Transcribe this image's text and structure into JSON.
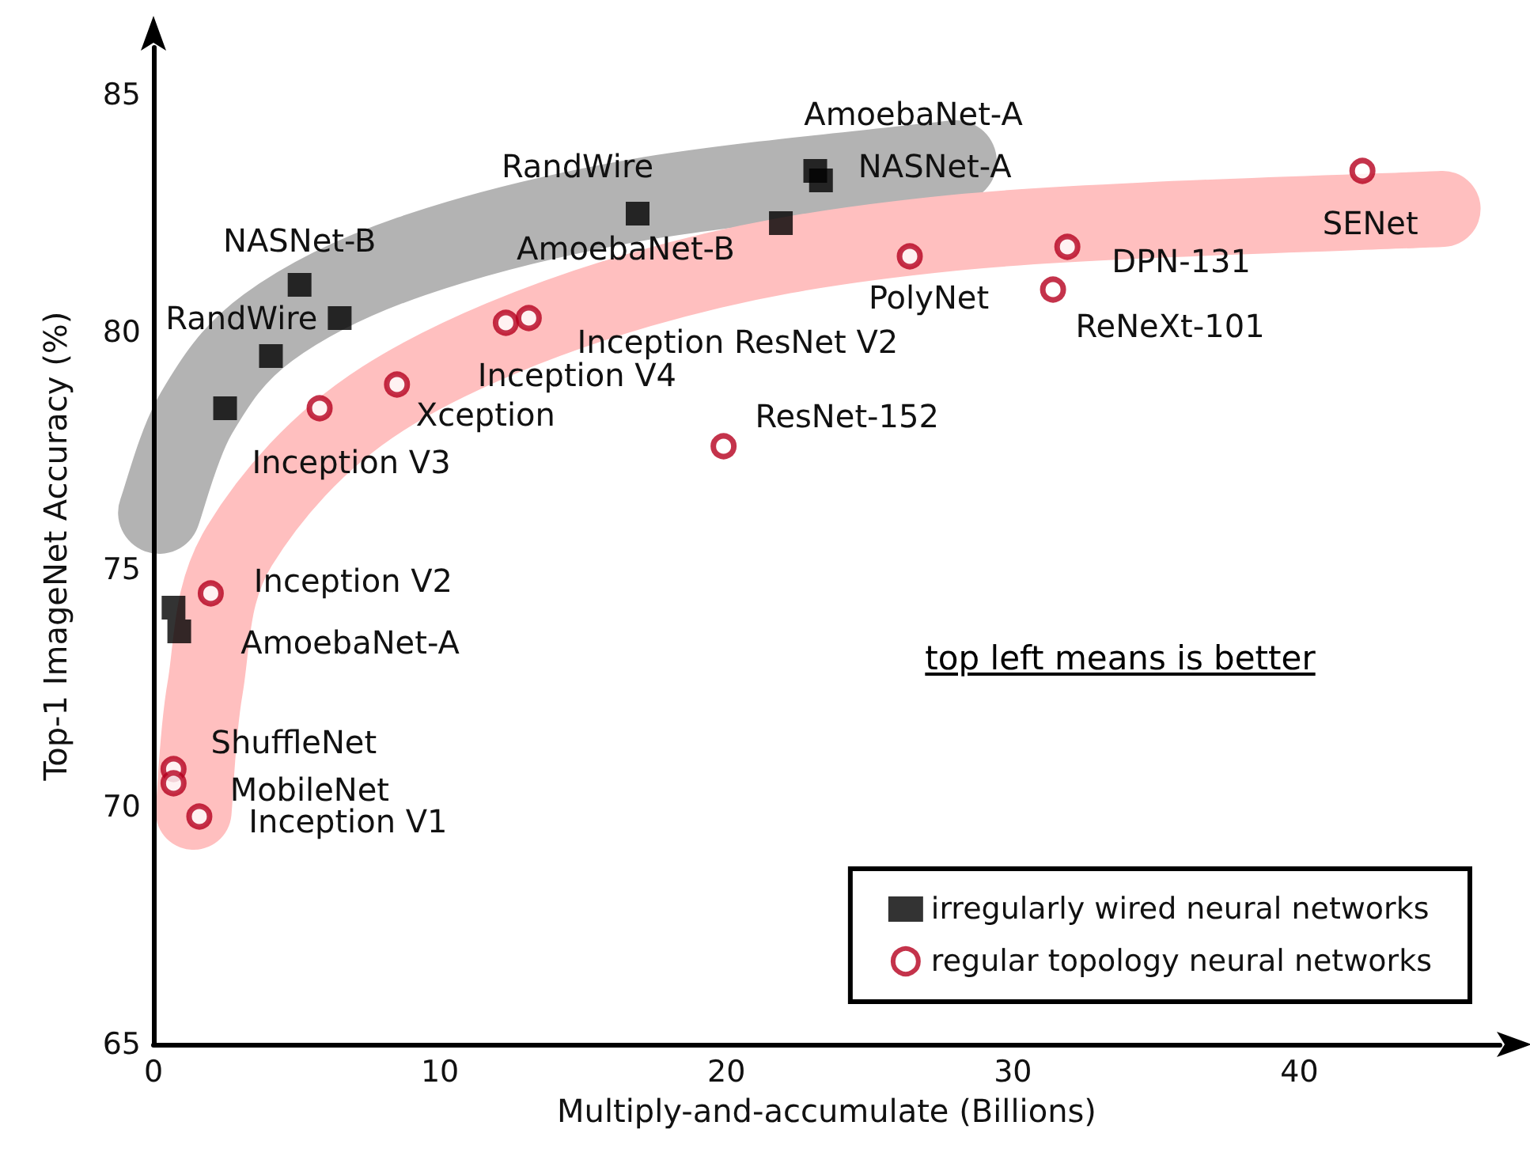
{
  "chart_data": {
    "type": "scatter",
    "xlabel": "Multiply-and-accumulate (Billions)",
    "ylabel": "Top-1 ImageNet Accuracy (%)",
    "xlim": [
      0,
      47
    ],
    "ylim": [
      65,
      86
    ],
    "xticks": [
      0,
      10,
      20,
      30,
      40
    ],
    "yticks": [
      65,
      70,
      75,
      80,
      85
    ],
    "grid": false,
    "legend": "bottom right",
    "series": [
      {
        "name": "irregularly wired neural networks",
        "color": "#000000",
        "marker": "square",
        "x": [
          5.1,
          6.5,
          4.1,
          2.5,
          0.7,
          0.9,
          16.9,
          21.9,
          23.1,
          23.3
        ],
        "values": [
          81.0,
          80.3,
          79.5,
          78.4,
          74.2,
          73.7,
          82.5,
          82.3,
          83.4,
          83.2
        ]
      },
      {
        "name": "regular topology neural networks",
        "color": "#b5001e",
        "marker": "circle",
        "x": [
          5.8,
          8.5,
          12.3,
          13.1,
          19.9,
          26.4,
          31.9,
          31.4,
          42.2,
          2.0,
          0.7,
          0.7,
          1.6
        ],
        "values": [
          78.4,
          78.9,
          80.2,
          80.3,
          77.6,
          81.6,
          81.8,
          80.9,
          83.4,
          74.5,
          70.8,
          70.5,
          69.8
        ]
      }
    ],
    "annotations": [
      {
        "text": "NASNet-B",
        "x": 5.1,
        "y": 81.0
      },
      {
        "text": "RandWire",
        "x": 6.5,
        "y": 80.3
      },
      {
        "text": "RandWire",
        "x": 16.9,
        "y": 82.5
      },
      {
        "text": "AmoebaNet-B",
        "x": 21.9,
        "y": 82.3
      },
      {
        "text": "AmoebaNet-A",
        "x": 23.1,
        "y": 83.4
      },
      {
        "text": "NASNet-A",
        "x": 23.3,
        "y": 83.2
      },
      {
        "text": "AmoebaNet-A",
        "x": 0.9,
        "y": 73.7
      },
      {
        "text": "Inception V3",
        "x": 5.8,
        "y": 78.4
      },
      {
        "text": "Xception",
        "x": 8.5,
        "y": 78.9
      },
      {
        "text": "Inception V4",
        "x": 12.3,
        "y": 80.2
      },
      {
        "text": "Inception ResNet V2",
        "x": 13.1,
        "y": 80.3
      },
      {
        "text": "ResNet-152",
        "x": 19.9,
        "y": 77.6
      },
      {
        "text": "PolyNet",
        "x": 26.4,
        "y": 81.6
      },
      {
        "text": "DPN-131",
        "x": 31.9,
        "y": 81.8
      },
      {
        "text": "ReNeXt-101",
        "x": 31.4,
        "y": 80.9
      },
      {
        "text": "SENet",
        "x": 42.2,
        "y": 83.4
      },
      {
        "text": "Inception V2",
        "x": 2.0,
        "y": 74.5
      },
      {
        "text": "ShuffleNet",
        "x": 0.7,
        "y": 70.8
      },
      {
        "text": "MobileNet",
        "x": 0.7,
        "y": 70.5
      },
      {
        "text": "Inception V1",
        "x": 1.6,
        "y": 69.8
      },
      "top left means is better"
    ]
  }
}
